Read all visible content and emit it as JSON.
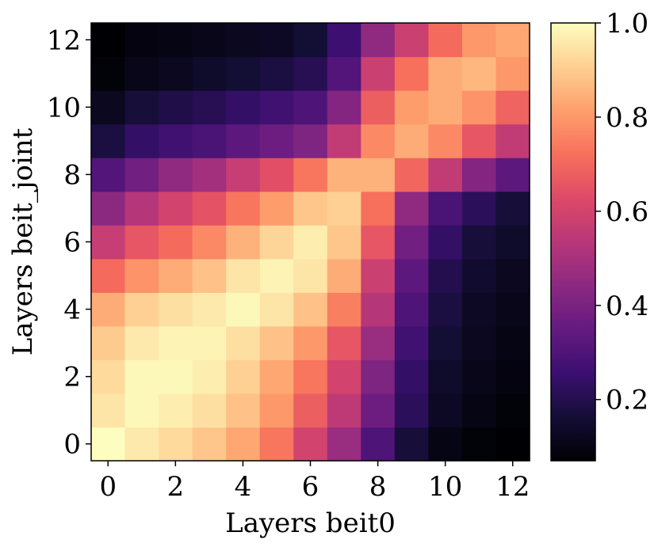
{
  "chart_data": {
    "type": "heatmap",
    "title": "",
    "xlabel": "Layers beit0",
    "ylabel": "Layers beit_joint",
    "x": [
      0,
      1,
      2,
      3,
      4,
      5,
      6,
      7,
      8,
      9,
      10,
      11,
      12
    ],
    "y": [
      0,
      1,
      2,
      3,
      4,
      5,
      6,
      7,
      8,
      9,
      10,
      11,
      12
    ],
    "x_tick_labels": [
      "0",
      "2",
      "4",
      "6",
      "8",
      "10",
      "12"
    ],
    "y_tick_labels": [
      "0",
      "2",
      "4",
      "6",
      "8",
      "10",
      "12"
    ],
    "colormap": "magma",
    "colorbar": {
      "range": [
        0.07,
        1.0
      ],
      "tick_labels": [
        "0.2",
        "0.4",
        "0.6",
        "0.8",
        "1.0"
      ],
      "ticks": [
        0.2,
        0.4,
        0.6,
        0.8,
        1.0
      ]
    },
    "values_by_y": [
      [
        1.0,
        0.96,
        0.93,
        0.89,
        0.83,
        0.73,
        0.6,
        0.47,
        0.3,
        0.17,
        0.1,
        0.08,
        0.07
      ],
      [
        0.95,
        0.99,
        0.97,
        0.94,
        0.88,
        0.8,
        0.68,
        0.55,
        0.37,
        0.22,
        0.13,
        0.1,
        0.08
      ],
      [
        0.93,
        0.99,
        0.99,
        0.97,
        0.91,
        0.83,
        0.73,
        0.6,
        0.41,
        0.24,
        0.14,
        0.11,
        0.09
      ],
      [
        0.9,
        0.96,
        0.98,
        0.98,
        0.94,
        0.88,
        0.8,
        0.66,
        0.47,
        0.27,
        0.16,
        0.12,
        0.1
      ],
      [
        0.84,
        0.91,
        0.94,
        0.96,
        0.99,
        0.95,
        0.88,
        0.75,
        0.53,
        0.3,
        0.18,
        0.13,
        0.11
      ],
      [
        0.71,
        0.79,
        0.84,
        0.88,
        0.95,
        0.98,
        0.95,
        0.84,
        0.58,
        0.33,
        0.2,
        0.15,
        0.12
      ],
      [
        0.57,
        0.66,
        0.71,
        0.77,
        0.85,
        0.92,
        0.97,
        0.89,
        0.66,
        0.38,
        0.24,
        0.17,
        0.14
      ],
      [
        0.44,
        0.53,
        0.6,
        0.65,
        0.73,
        0.81,
        0.89,
        0.91,
        0.72,
        0.45,
        0.29,
        0.22,
        0.17
      ],
      [
        0.31,
        0.38,
        0.45,
        0.49,
        0.57,
        0.64,
        0.73,
        0.85,
        0.85,
        0.7,
        0.56,
        0.42,
        0.33
      ],
      [
        0.18,
        0.24,
        0.27,
        0.29,
        0.33,
        0.37,
        0.41,
        0.56,
        0.77,
        0.84,
        0.77,
        0.66,
        0.56
      ],
      [
        0.12,
        0.17,
        0.19,
        0.21,
        0.24,
        0.27,
        0.3,
        0.42,
        0.68,
        0.81,
        0.84,
        0.79,
        0.69
      ],
      [
        0.08,
        0.11,
        0.12,
        0.14,
        0.16,
        0.18,
        0.21,
        0.31,
        0.58,
        0.72,
        0.84,
        0.86,
        0.8
      ],
      [
        0.07,
        0.09,
        0.1,
        0.11,
        0.12,
        0.13,
        0.16,
        0.26,
        0.45,
        0.58,
        0.71,
        0.8,
        0.83
      ]
    ]
  }
}
